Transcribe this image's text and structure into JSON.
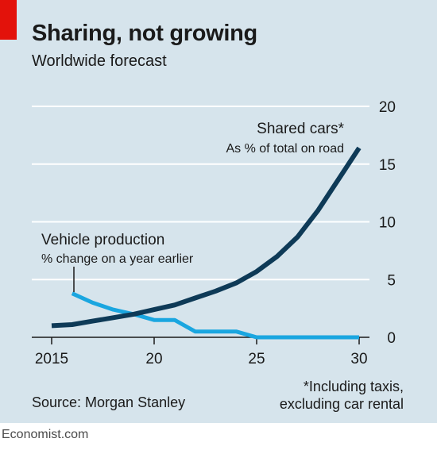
{
  "title": "Sharing, not growing",
  "subtitle": "Worldwide forecast",
  "source": "Source: Morgan Stanley",
  "footnote": [
    "*Including taxis,",
    "excluding car rental"
  ],
  "brand": "Economist.com",
  "colors": {
    "accent": "#e3120b",
    "background": "#d6e4ec",
    "shared": "#0e3a57",
    "vehicle": "#1aa6e0"
  },
  "chart_data": {
    "type": "line",
    "xlim": [
      2015,
      2030
    ],
    "ylim": [
      0,
      20
    ],
    "x_ticks": [
      {
        "value": 2015,
        "label": "2015"
      },
      {
        "value": 2020,
        "label": "20"
      },
      {
        "value": 2025,
        "label": "25"
      },
      {
        "value": 2030,
        "label": "30"
      }
    ],
    "y_ticks": [
      0,
      5,
      10,
      15,
      20
    ],
    "y_axis_side": "right",
    "grid": true,
    "series": [
      {
        "name": "Shared cars*",
        "sublabel": "As % of total on road",
        "color": "#0e3a57",
        "x": [
          2015,
          2016,
          2017,
          2018,
          2019,
          2020,
          2021,
          2022,
          2023,
          2024,
          2025,
          2026,
          2027,
          2028,
          2029,
          2030
        ],
        "values": [
          1.0,
          1.1,
          1.4,
          1.7,
          2.0,
          2.4,
          2.8,
          3.4,
          4.0,
          4.7,
          5.7,
          7.0,
          8.7,
          11.0,
          13.7,
          16.4
        ]
      },
      {
        "name": "Vehicle production",
        "sublabel": "% change on a year earlier",
        "color": "#1aa6e0",
        "x": [
          2016,
          2017,
          2018,
          2019,
          2020,
          2021,
          2022,
          2023,
          2024,
          2025,
          2026,
          2027,
          2028,
          2029,
          2030
        ],
        "values": [
          3.8,
          3.0,
          2.4,
          2.0,
          1.5,
          1.5,
          0.5,
          0.5,
          0.5,
          0.0,
          0.0,
          0.0,
          0.0,
          0.0,
          0.0
        ]
      }
    ]
  }
}
